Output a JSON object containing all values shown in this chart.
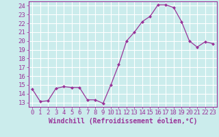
{
  "x": [
    0,
    1,
    2,
    3,
    4,
    5,
    6,
    7,
    8,
    9,
    10,
    11,
    12,
    13,
    14,
    15,
    16,
    17,
    18,
    19,
    20,
    21,
    22,
    23
  ],
  "y": [
    14.5,
    13.1,
    13.2,
    14.6,
    14.8,
    14.7,
    14.7,
    13.3,
    13.3,
    12.9,
    15.0,
    17.3,
    20.0,
    21.0,
    22.2,
    22.8,
    24.1,
    24.1,
    23.8,
    22.2,
    20.0,
    19.3,
    19.9,
    19.7
  ],
  "line_color": "#993399",
  "marker": "D",
  "marker_size": 2,
  "background_color": "#cbecec",
  "grid_color": "#ffffff",
  "xlabel": "Windchill (Refroidissement éolien,°C)",
  "xlabel_fontsize": 7,
  "xlim": [
    -0.5,
    23.5
  ],
  "ylim": [
    12.5,
    24.5
  ],
  "yticks": [
    13,
    14,
    15,
    16,
    17,
    18,
    19,
    20,
    21,
    22,
    23,
    24
  ],
  "xticks": [
    0,
    1,
    2,
    3,
    4,
    5,
    6,
    7,
    8,
    9,
    10,
    11,
    12,
    13,
    14,
    15,
    16,
    17,
    18,
    19,
    20,
    21,
    22,
    23
  ],
  "tick_fontsize": 6.5,
  "spine_color": "#993399"
}
